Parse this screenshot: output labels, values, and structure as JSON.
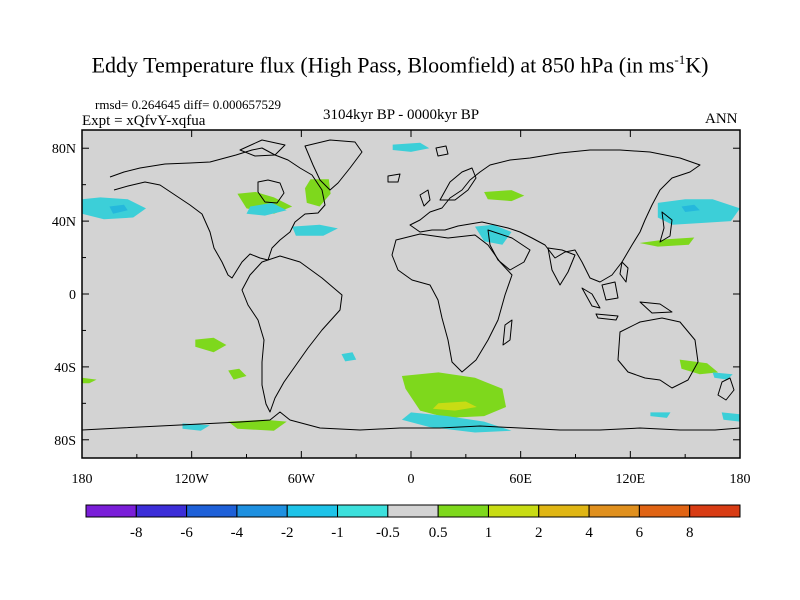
{
  "title": {
    "main": "Eddy Temperature flux (High Pass, Bloomfield) at 850 hPa (in ms",
    "sup": "-1",
    "tail": "K)"
  },
  "stats": "rmsd= 0.264645  diff= 0.000657529",
  "experiment": "Expt = xQfvY-xqfua",
  "period": "3104kyr BP - 0000kyr BP",
  "season": "ANN",
  "map": {
    "projection": "cylindrical equidistant",
    "lon_range": [
      -180,
      180
    ],
    "lat_range": [
      -90,
      90
    ],
    "background_color": "#d3d3d3",
    "lat_labels": [
      {
        "lat": 80,
        "text": "80N"
      },
      {
        "lat": 40,
        "text": "40N"
      },
      {
        "lat": 0,
        "text": "0"
      },
      {
        "lat": -40,
        "text": "40S"
      },
      {
        "lat": -80,
        "text": "80S"
      }
    ],
    "lon_labels": [
      {
        "lon": -180,
        "text": "180"
      },
      {
        "lon": -120,
        "text": "120W"
      },
      {
        "lon": -60,
        "text": "60W"
      },
      {
        "lon": 0,
        "text": "0"
      },
      {
        "lon": 60,
        "text": "60E"
      },
      {
        "lon": 120,
        "text": "120E"
      },
      {
        "lon": 180,
        "text": "180"
      }
    ],
    "anomaly_regions": [
      {
        "name": "north-pacific-negative",
        "level": -1,
        "color": "#3ccfd8",
        "points": [
          [
            -180,
            52
          ],
          [
            -170,
            53
          ],
          [
            -155,
            52
          ],
          [
            -145,
            47
          ],
          [
            -152,
            42
          ],
          [
            -168,
            41
          ],
          [
            -180,
            44
          ]
        ]
      },
      {
        "name": "north-pacific-core",
        "level": -2,
        "color": "#25b8dc",
        "points": [
          [
            -165,
            48
          ],
          [
            -157,
            49
          ],
          [
            -155,
            46
          ],
          [
            -163,
            44
          ]
        ]
      },
      {
        "name": "hudson-east-positive",
        "level": 1,
        "color": "#7ed81c",
        "points": [
          [
            -95,
            55
          ],
          [
            -85,
            56
          ],
          [
            -75,
            53
          ],
          [
            -65,
            48
          ],
          [
            -75,
            44
          ],
          [
            -90,
            47
          ]
        ]
      },
      {
        "name": "greenland-labrador-positive",
        "level": 1,
        "color": "#7ed81c",
        "points": [
          [
            -55,
            63
          ],
          [
            -45,
            63
          ],
          [
            -44,
            55
          ],
          [
            -50,
            48
          ],
          [
            -57,
            50
          ],
          [
            -58,
            58
          ]
        ]
      },
      {
        "name": "us-northeast-negative",
        "level": -1,
        "color": "#3ccfd8",
        "points": [
          [
            -88,
            48
          ],
          [
            -76,
            50
          ],
          [
            -68,
            46
          ],
          [
            -80,
            43
          ],
          [
            -90,
            44
          ]
        ]
      },
      {
        "name": "western-atlantic-negative",
        "level": -1,
        "color": "#3ccfd8",
        "points": [
          [
            -65,
            37
          ],
          [
            -50,
            38
          ],
          [
            -40,
            36
          ],
          [
            -48,
            32
          ],
          [
            -63,
            32
          ]
        ]
      },
      {
        "name": "arctic-negative",
        "level": -1,
        "color": "#3ccfd8",
        "points": [
          [
            -10,
            82
          ],
          [
            5,
            83
          ],
          [
            10,
            80
          ],
          [
            0,
            78
          ],
          [
            -10,
            79
          ]
        ]
      },
      {
        "name": "central-asia-positive",
        "level": 1,
        "color": "#7ed81c",
        "points": [
          [
            40,
            56
          ],
          [
            55,
            57
          ],
          [
            62,
            54
          ],
          [
            55,
            51
          ],
          [
            42,
            52
          ]
        ]
      },
      {
        "name": "middle-east-negative",
        "level": -1,
        "color": "#3ccfd8",
        "points": [
          [
            35,
            37
          ],
          [
            45,
            38
          ],
          [
            55,
            34
          ],
          [
            50,
            27
          ],
          [
            40,
            29
          ]
        ]
      },
      {
        "name": "japan-negative",
        "level": -1,
        "color": "#3ccfd8",
        "points": [
          [
            135,
            50
          ],
          [
            150,
            52
          ],
          [
            165,
            52
          ],
          [
            180,
            47
          ],
          [
            175,
            40
          ],
          [
            160,
            39
          ],
          [
            143,
            38
          ],
          [
            135,
            42
          ]
        ]
      },
      {
        "name": "japan-core",
        "level": -2,
        "color": "#25b8dc",
        "points": [
          [
            148,
            48
          ],
          [
            155,
            49
          ],
          [
            158,
            46
          ],
          [
            150,
            45
          ]
        ]
      },
      {
        "name": "west-pacific-positive",
        "level": 1,
        "color": "#7ed81c",
        "points": [
          [
            125,
            28
          ],
          [
            140,
            30
          ],
          [
            155,
            31
          ],
          [
            152,
            27
          ],
          [
            135,
            26
          ]
        ]
      },
      {
        "name": "south-pacific-positive-1",
        "level": 1,
        "color": "#7ed81c",
        "points": [
          [
            -118,
            -25
          ],
          [
            -108,
            -24
          ],
          [
            -101,
            -28
          ],
          [
            -108,
            -32
          ],
          [
            -118,
            -29
          ]
        ]
      },
      {
        "name": "south-pacific-positive-2",
        "level": 1,
        "color": "#7ed81c",
        "points": [
          [
            -100,
            -42
          ],
          [
            -94,
            -41
          ],
          [
            -90,
            -45
          ],
          [
            -97,
            -47
          ]
        ]
      },
      {
        "name": "far-south-pacific-positive",
        "level": 1,
        "color": "#7ed81c",
        "points": [
          [
            -180,
            -46
          ],
          [
            -172,
            -47
          ],
          [
            -176,
            -49
          ],
          [
            -180,
            -49
          ]
        ]
      },
      {
        "name": "south-america-coast-negative",
        "level": -1,
        "color": "#3ccfd8",
        "points": [
          [
            -38,
            -33
          ],
          [
            -32,
            -32
          ],
          [
            -30,
            -36
          ],
          [
            -36,
            -37
          ]
        ]
      },
      {
        "name": "south-atlantic-positive",
        "level": 1,
        "color": "#7ed81c",
        "points": [
          [
            -5,
            -45
          ],
          [
            15,
            -43
          ],
          [
            35,
            -46
          ],
          [
            50,
            -52
          ],
          [
            52,
            -62
          ],
          [
            40,
            -67
          ],
          [
            20,
            -68
          ],
          [
            5,
            -64
          ],
          [
            -3,
            -52
          ]
        ]
      },
      {
        "name": "south-atlantic-core",
        "level": 2,
        "color": "#c8dc14",
        "points": [
          [
            15,
            -60
          ],
          [
            30,
            -59
          ],
          [
            36,
            -62
          ],
          [
            24,
            -64
          ],
          [
            12,
            -63
          ]
        ]
      },
      {
        "name": "indian-antarctic-negative",
        "level": -1,
        "color": "#3ccfd8",
        "points": [
          [
            0,
            -65
          ],
          [
            20,
            -67
          ],
          [
            40,
            -70
          ],
          [
            55,
            -75
          ],
          [
            35,
            -76
          ],
          [
            10,
            -73
          ],
          [
            -5,
            -69
          ]
        ]
      },
      {
        "name": "drake-passage-positive",
        "level": 1,
        "color": "#7ed81c",
        "points": [
          [
            -100,
            -70
          ],
          [
            -80,
            -69
          ],
          [
            -68,
            -70
          ],
          [
            -75,
            -75
          ],
          [
            -95,
            -74
          ]
        ]
      },
      {
        "name": "amundsen-negative",
        "level": -1,
        "color": "#3ccfd8",
        "points": [
          [
            -125,
            -71
          ],
          [
            -110,
            -72
          ],
          [
            -115,
            -75
          ],
          [
            -125,
            -74
          ]
        ]
      },
      {
        "name": "australia-east-positive",
        "level": 1,
        "color": "#7ed81c",
        "points": [
          [
            147,
            -36
          ],
          [
            162,
            -38
          ],
          [
            168,
            -43
          ],
          [
            158,
            -44
          ],
          [
            148,
            -41
          ]
        ]
      },
      {
        "name": "tasman-negative",
        "level": -1,
        "color": "#3ccfd8",
        "points": [
          [
            165,
            -43
          ],
          [
            176,
            -44
          ],
          [
            173,
            -47
          ],
          [
            166,
            -46
          ]
        ]
      },
      {
        "name": "southern-ocean-east-negative",
        "level": -1,
        "color": "#3ccfd8",
        "points": [
          [
            131,
            -65
          ],
          [
            142,
            -65
          ],
          [
            140,
            -68
          ],
          [
            131,
            -67
          ]
        ]
      },
      {
        "name": "ross-negative",
        "level": -1,
        "color": "#3ccfd8",
        "points": [
          [
            170,
            -65
          ],
          [
            180,
            -66
          ],
          [
            180,
            -70
          ],
          [
            171,
            -69
          ]
        ]
      }
    ]
  },
  "colorbar": {
    "colors": [
      "#7a1ed8",
      "#3c2ed8",
      "#1e60d8",
      "#1e90e0",
      "#1ec3e8",
      "#3ce0dc",
      "#d3d3d3",
      "#7ed81c",
      "#c8dc14",
      "#e0b614",
      "#e0901e",
      "#e06414",
      "#d83c14"
    ],
    "labels": [
      "-8",
      "-6",
      "-4",
      "-2",
      "-1",
      "-0.5",
      "0.5",
      "1",
      "2",
      "4",
      "6",
      "8"
    ]
  }
}
